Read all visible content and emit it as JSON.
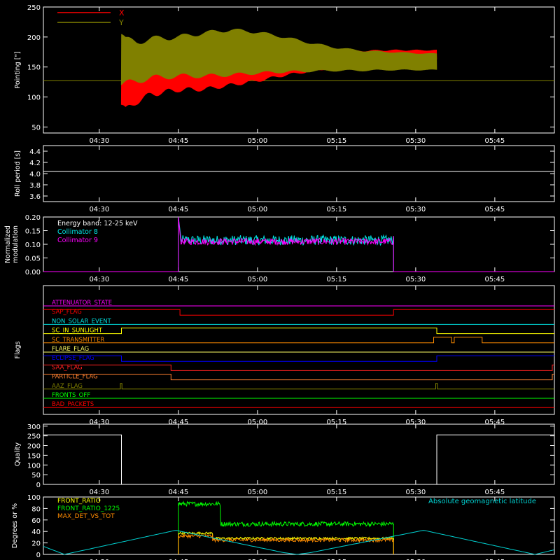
{
  "colors": {
    "background": "#000000",
    "axes": "#ffffff",
    "x_series": "#ff0000",
    "y_series": "#808000",
    "reference": "#808000",
    "collimator8": "#00e6e6",
    "collimator9": "#ff00ff",
    "front_ratio": "#ffff00",
    "front_ratio_1225": "#00ff00",
    "max_det_vs_tot": "#ff8c00",
    "geomag": "#00d2d2"
  },
  "time_axis": {
    "tick_labels": [
      "04:30",
      "04:45",
      "05:00",
      "05:15",
      "05:30",
      "05:45"
    ],
    "tick_minutes": [
      270,
      285,
      300,
      315,
      330,
      345
    ],
    "range_minutes": [
      259.4,
      356.3
    ]
  },
  "chart_data": [
    {
      "id": "pointing",
      "type": "line",
      "ylabel": "Pointing [\"]",
      "ylim": [
        40,
        250
      ],
      "yticks": [
        50,
        100,
        150,
        200,
        250
      ],
      "series": [
        {
          "name": "X",
          "x": [
            259.4,
            274.0,
            274.2,
            275,
            277,
            280,
            285,
            290,
            295,
            300,
            305,
            310,
            315,
            320,
            325,
            330,
            334.0,
            334.2,
            356.3
          ],
          "y_min": [
            127,
            127,
            87,
            78,
            92,
            105,
            112,
            113,
            120,
            127,
            136,
            143,
            150,
            156,
            158,
            160,
            162,
            127,
            127
          ],
          "y_max": [
            127,
            127,
            135,
            140,
            145,
            150,
            160,
            165,
            168,
            170,
            172,
            174,
            176,
            177,
            178,
            178,
            178,
            127,
            127
          ]
        },
        {
          "name": "Y",
          "x": [
            259.4,
            274.0,
            274.2,
            275,
            277,
            280,
            285,
            290,
            295,
            300,
            305,
            310,
            315,
            320,
            325,
            330,
            334.0,
            334.2,
            356.3
          ],
          "y_min": [
            127,
            127,
            120,
            122,
            127,
            132,
            135,
            135,
            137,
            140,
            142,
            143,
            144,
            144,
            145,
            145,
            145,
            127,
            127
          ],
          "y_max": [
            127,
            127,
            205,
            195,
            192,
            197,
            200,
            207,
            212,
            208,
            200,
            190,
            182,
            177,
            175,
            173,
            172,
            127,
            127
          ]
        }
      ]
    },
    {
      "id": "roll_period",
      "type": "line",
      "ylabel": "Roll period [s]",
      "ylim": [
        3.5,
        4.5
      ],
      "yticks": [
        3.6,
        3.8,
        4.0,
        4.2,
        4.4
      ],
      "series": [
        {
          "x": [
            259.4,
            356.3
          ],
          "y": [
            4.04,
            4.04
          ]
        }
      ]
    },
    {
      "id": "modulation",
      "type": "line",
      "ylabel": "Normalized modulation",
      "ylim": [
        0,
        0.2
      ],
      "yticks": [
        0.0,
        0.05,
        0.1,
        0.15,
        0.2
      ],
      "annotation": "Energy band: 12-25 keV",
      "active_range": [
        285.0,
        325.8
      ],
      "series": [
        {
          "name": "Collimator 8",
          "mean": 0.115,
          "noise": 0.018
        },
        {
          "name": "Collimator 9",
          "mean": 0.11,
          "noise": 0.012
        }
      ]
    },
    {
      "id": "flags",
      "type": "line",
      "ylabel": "Flags",
      "flags": [
        {
          "name": "ATTENUATOR_STATE",
          "color": "#ff00ff",
          "transitions": [
            [
              259.4,
              0
            ]
          ]
        },
        {
          "name": "SAP_FLAG",
          "color": "#ff0000",
          "transitions": [
            [
              259.4,
              1
            ],
            [
              285.3,
              0
            ],
            [
              325.8,
              1
            ]
          ]
        },
        {
          "name": "NON_SOLAR_EVENT",
          "color": "#00e0e0",
          "transitions": [
            [
              259.4,
              0
            ]
          ]
        },
        {
          "name": "SC_IN_SUNLIGHT",
          "color": "#ffff00",
          "transitions": [
            [
              259.4,
              0
            ],
            [
              274.2,
              1
            ],
            [
              334.0,
              0
            ]
          ]
        },
        {
          "name": "SC_TRANSMITTER",
          "color": "#ff8c00",
          "transitions": [
            [
              259.4,
              0
            ],
            [
              333.4,
              1
            ],
            [
              336.8,
              0
            ],
            [
              337.3,
              1
            ],
            [
              342.6,
              0
            ]
          ]
        },
        {
          "name": "FLARE_FLAG",
          "color": "#ffff66",
          "transitions": [
            [
              259.4,
              0
            ]
          ]
        },
        {
          "name": "ECLIPSE_FLAG",
          "color": "#0000ff",
          "transitions": [
            [
              259.4,
              1
            ],
            [
              274.2,
              0
            ],
            [
              334.0,
              1
            ]
          ]
        },
        {
          "name": "SAA_FLAG",
          "color": "#ff2020",
          "transitions": [
            [
              259.4,
              1
            ],
            [
              283.6,
              0
            ],
            [
              355.9,
              1
            ]
          ]
        },
        {
          "name": "PARTICLE_FLAG",
          "color": "#ff8030",
          "transitions": [
            [
              259.4,
              1
            ],
            [
              283.6,
              0
            ],
            [
              355.9,
              1
            ]
          ]
        },
        {
          "name": "AAZ_FLAG",
          "color": "#808000",
          "transitions": [
            [
              259.4,
              0
            ],
            [
              274.0,
              1
            ],
            [
              274.3,
              0
            ],
            [
              333.8,
              1
            ],
            [
              334.1,
              0
            ]
          ]
        },
        {
          "name": "FRONTS_OFF",
          "color": "#00ff00",
          "transitions": [
            [
              259.4,
              0
            ]
          ]
        },
        {
          "name": "BAD_PACKETS",
          "color": "#ff0000",
          "transitions": [
            [
              259.4,
              0
            ]
          ]
        }
      ]
    },
    {
      "id": "quality",
      "type": "line",
      "ylabel": "Quality",
      "ylim": [
        0,
        310
      ],
      "yticks": [
        0,
        50,
        100,
        150,
        200,
        250,
        300
      ],
      "series": [
        {
          "x": [
            259.4,
            274.2,
            274.2,
            334.0,
            334.0,
            356.3
          ],
          "y": [
            255,
            255,
            0,
            0,
            255,
            255
          ]
        }
      ]
    },
    {
      "id": "ratios",
      "type": "line",
      "ylabel": "Degrees or %",
      "ylim": [
        0,
        100
      ],
      "yticks": [
        0,
        20,
        40,
        60,
        80,
        100
      ],
      "annotation": "Absolute geomagnetic latitude",
      "series": [
        {
          "name": "FRONT_RATIO",
          "segments": [
            [
              285.0,
              291.5,
              37
            ],
            [
              291.5,
              325.8,
              28
            ]
          ],
          "noise": 2
        },
        {
          "name": "FRONT_RATIO_1225",
          "segments": [
            [
              285.0,
              293.0,
              88
            ],
            [
              293.0,
              325.8,
              53
            ]
          ],
          "noise": 4
        },
        {
          "name": "MAX_DET_VS_TOT",
          "segments": [
            [
              285.0,
              291.5,
              32
            ],
            [
              291.5,
              325.8,
              25
            ]
          ],
          "noise": 3
        },
        {
          "name": "Absolute geomagnetic latitude",
          "x": [
            259.4,
            263.4,
            284.5,
            305.0,
            307.5,
            310.0,
            331.5,
            352.6,
            356.3
          ],
          "y": [
            14,
            0,
            42,
            3,
            0,
            3,
            42,
            0,
            8
          ]
        }
      ]
    }
  ]
}
